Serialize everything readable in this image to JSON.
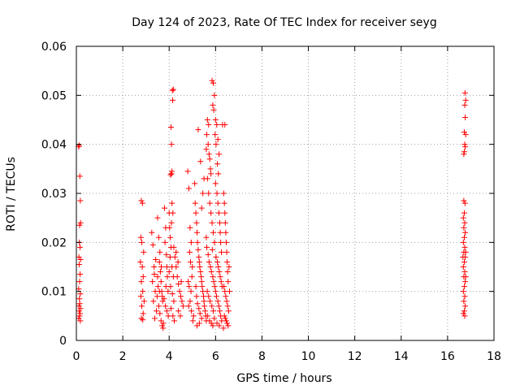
{
  "chart_data": {
    "type": "scatter",
    "title": "Day 124 of 2023, Rate Of TEC Index for receiver seyg",
    "xlabel": "GPS time / hours",
    "ylabel": "ROTI / TECUs",
    "xlim": [
      0,
      18
    ],
    "ylim": [
      0,
      0.06
    ],
    "grid": true,
    "marker": "plus",
    "color": "#ff0000",
    "xticks": [
      0,
      2,
      4,
      6,
      8,
      10,
      12,
      14,
      16,
      18
    ],
    "xtick_labels": [
      "0",
      "2",
      "4",
      "6",
      "8",
      "10",
      "12",
      "14",
      "16",
      "18"
    ],
    "yticks": [
      0,
      0.01,
      0.02,
      0.03,
      0.04,
      0.05,
      0.06
    ],
    "ytick_labels": [
      "0",
      "0.01",
      "0.02",
      "0.03",
      "0.04",
      "0.05",
      "0.06"
    ],
    "series": [
      {
        "name": "ROTI",
        "points": [
          [
            0.1,
            0.0395
          ],
          [
            0.12,
            0.0398
          ],
          [
            0.15,
            0.0335
          ],
          [
            0.17,
            0.0285
          ],
          [
            0.18,
            0.024
          ],
          [
            0.14,
            0.0235
          ],
          [
            0.13,
            0.02
          ],
          [
            0.16,
            0.019
          ],
          [
            0.11,
            0.017
          ],
          [
            0.18,
            0.0165
          ],
          [
            0.12,
            0.0155
          ],
          [
            0.16,
            0.0135
          ],
          [
            0.14,
            0.012
          ],
          [
            0.1,
            0.0105
          ],
          [
            0.17,
            0.0095
          ],
          [
            0.13,
            0.0085
          ],
          [
            0.15,
            0.0075
          ],
          [
            0.11,
            0.007
          ],
          [
            0.18,
            0.0065
          ],
          [
            0.12,
            0.006
          ],
          [
            0.16,
            0.0055
          ],
          [
            0.14,
            0.005
          ],
          [
            0.1,
            0.0045
          ],
          [
            0.17,
            0.004
          ],
          [
            2.8,
            0.0285
          ],
          [
            2.85,
            0.028
          ],
          [
            2.78,
            0.021
          ],
          [
            2.82,
            0.02
          ],
          [
            2.9,
            0.018
          ],
          [
            2.76,
            0.016
          ],
          [
            2.84,
            0.015
          ],
          [
            2.88,
            0.013
          ],
          [
            2.8,
            0.012
          ],
          [
            2.86,
            0.01
          ],
          [
            2.78,
            0.009
          ],
          [
            2.92,
            0.008
          ],
          [
            2.82,
            0.007
          ],
          [
            2.88,
            0.0055
          ],
          [
            2.8,
            0.0045
          ],
          [
            2.86,
            0.0042
          ],
          [
            3.25,
            0.022
          ],
          [
            3.3,
            0.0195
          ],
          [
            3.35,
            0.015
          ],
          [
            3.28,
            0.012
          ],
          [
            3.4,
            0.01
          ],
          [
            3.32,
            0.008
          ],
          [
            3.45,
            0.006
          ],
          [
            3.38,
            0.0045
          ],
          [
            3.5,
            0.025
          ],
          [
            3.55,
            0.021
          ],
          [
            3.6,
            0.018
          ],
          [
            3.58,
            0.016
          ],
          [
            3.62,
            0.014
          ],
          [
            3.65,
            0.012
          ],
          [
            3.68,
            0.01
          ],
          [
            3.7,
            0.009
          ],
          [
            3.72,
            0.008
          ],
          [
            3.55,
            0.007
          ],
          [
            3.6,
            0.0055
          ],
          [
            3.65,
            0.004
          ],
          [
            3.75,
            0.0035
          ],
          [
            3.8,
            0.027
          ],
          [
            3.85,
            0.023
          ],
          [
            3.82,
            0.02
          ],
          [
            3.88,
            0.0175
          ],
          [
            3.9,
            0.015
          ],
          [
            3.92,
            0.013
          ],
          [
            3.86,
            0.011
          ],
          [
            3.95,
            0.01
          ],
          [
            3.78,
            0.0085
          ],
          [
            3.84,
            0.007
          ],
          [
            3.9,
            0.006
          ],
          [
            3.96,
            0.005
          ],
          [
            3.7,
            0.003
          ],
          [
            3.74,
            0.0025
          ],
          [
            3.5,
            0.013
          ],
          [
            3.52,
            0.011
          ],
          [
            3.48,
            0.009
          ],
          [
            3.42,
            0.0165
          ],
          [
            3.36,
            0.0135
          ],
          [
            3.58,
            0.01
          ],
          [
            3.66,
            0.015
          ],
          [
            4.0,
            0.026
          ],
          [
            4.02,
            0.023
          ],
          [
            4.05,
            0.021
          ],
          [
            4.08,
            0.019
          ],
          [
            4.1,
            0.034
          ],
          [
            4.12,
            0.0345
          ],
          [
            4.06,
            0.0338
          ],
          [
            4.1,
            0.04
          ],
          [
            4.08,
            0.0435
          ],
          [
            4.15,
            0.049
          ],
          [
            4.14,
            0.051
          ],
          [
            4.18,
            0.0512
          ],
          [
            4.12,
            0.028
          ],
          [
            4.16,
            0.026
          ],
          [
            4.1,
            0.024
          ],
          [
            4.04,
            0.017
          ],
          [
            4.12,
            0.015
          ],
          [
            4.18,
            0.013
          ],
          [
            4.06,
            0.011
          ],
          [
            4.14,
            0.0095
          ],
          [
            4.2,
            0.008
          ],
          [
            4.08,
            0.0065
          ],
          [
            4.16,
            0.005
          ],
          [
            4.22,
            0.004
          ],
          [
            4.0,
            0.014
          ],
          [
            4.2,
            0.019
          ],
          [
            4.25,
            0.017
          ],
          [
            4.3,
            0.015
          ],
          [
            4.35,
            0.013
          ],
          [
            4.4,
            0.0115
          ],
          [
            4.45,
            0.01
          ],
          [
            4.5,
            0.009
          ],
          [
            4.55,
            0.008
          ],
          [
            4.6,
            0.007
          ],
          [
            4.4,
            0.006
          ],
          [
            4.48,
            0.005
          ],
          [
            4.3,
            0.018
          ],
          [
            4.38,
            0.016
          ],
          [
            4.52,
            0.012
          ],
          [
            4.8,
            0.0345
          ],
          [
            4.85,
            0.031
          ],
          [
            4.9,
            0.023
          ],
          [
            4.95,
            0.02
          ],
          [
            4.88,
            0.018
          ],
          [
            4.92,
            0.016
          ],
          [
            5.0,
            0.015
          ],
          [
            4.98,
            0.013
          ],
          [
            4.82,
            0.012
          ],
          [
            4.86,
            0.011
          ],
          [
            4.94,
            0.01
          ],
          [
            4.9,
            0.008
          ],
          [
            4.84,
            0.007
          ],
          [
            4.96,
            0.006
          ],
          [
            5.05,
            0.005
          ],
          [
            5.02,
            0.004
          ],
          [
            5.1,
            0.032
          ],
          [
            5.12,
            0.028
          ],
          [
            5.15,
            0.026
          ],
          [
            5.18,
            0.024
          ],
          [
            5.2,
            0.022
          ],
          [
            5.22,
            0.02
          ],
          [
            5.25,
            0.0185
          ],
          [
            5.28,
            0.017
          ],
          [
            5.3,
            0.016
          ],
          [
            5.32,
            0.015
          ],
          [
            5.35,
            0.014
          ],
          [
            5.38,
            0.013
          ],
          [
            5.4,
            0.012
          ],
          [
            5.42,
            0.011
          ],
          [
            5.45,
            0.01
          ],
          [
            5.48,
            0.009
          ],
          [
            5.5,
            0.008
          ],
          [
            5.52,
            0.007
          ],
          [
            5.55,
            0.006
          ],
          [
            5.58,
            0.005
          ],
          [
            5.6,
            0.004
          ],
          [
            5.2,
            0.003
          ],
          [
            5.3,
            0.0035
          ],
          [
            5.4,
            0.0045
          ],
          [
            5.25,
            0.043
          ],
          [
            5.35,
            0.0365
          ],
          [
            5.45,
            0.03
          ],
          [
            5.5,
            0.033
          ],
          [
            5.4,
            0.027
          ],
          [
            5.15,
            0.011
          ],
          [
            5.18,
            0.009
          ],
          [
            5.22,
            0.0075
          ],
          [
            5.28,
            0.0065
          ],
          [
            5.33,
            0.0055
          ],
          [
            5.6,
            0.039
          ],
          [
            5.62,
            0.042
          ],
          [
            5.65,
            0.045
          ],
          [
            5.7,
            0.044
          ],
          [
            5.68,
            0.04
          ],
          [
            5.72,
            0.038
          ],
          [
            5.75,
            0.037
          ],
          [
            5.78,
            0.035
          ],
          [
            5.8,
            0.034
          ],
          [
            5.65,
            0.033
          ],
          [
            5.7,
            0.03
          ],
          [
            5.75,
            0.028
          ],
          [
            5.8,
            0.026
          ],
          [
            5.85,
            0.024
          ],
          [
            5.9,
            0.022
          ],
          [
            5.95,
            0.02
          ],
          [
            5.62,
            0.019
          ],
          [
            5.68,
            0.0175
          ],
          [
            5.72,
            0.016
          ],
          [
            5.78,
            0.015
          ],
          [
            5.82,
            0.014
          ],
          [
            5.88,
            0.013
          ],
          [
            5.92,
            0.012
          ],
          [
            5.96,
            0.011
          ],
          [
            5.64,
            0.01
          ],
          [
            5.7,
            0.009
          ],
          [
            5.76,
            0.008
          ],
          [
            5.84,
            0.007
          ],
          [
            5.9,
            0.006
          ],
          [
            5.66,
            0.005
          ],
          [
            5.74,
            0.004
          ],
          [
            5.82,
            0.0035
          ],
          [
            5.88,
            0.003
          ],
          [
            5.94,
            0.0045
          ],
          [
            5.6,
            0.021
          ],
          [
            5.86,
            0.0185
          ],
          [
            5.85,
            0.053
          ],
          [
            5.9,
            0.0525
          ],
          [
            5.95,
            0.05
          ],
          [
            5.88,
            0.048
          ],
          [
            5.92,
            0.047
          ],
          [
            6.0,
            0.045
          ],
          [
            6.05,
            0.044
          ],
          [
            6.1,
            0.041
          ],
          [
            6.15,
            0.038
          ],
          [
            5.98,
            0.042
          ],
          [
            6.02,
            0.04
          ],
          [
            6.08,
            0.036
          ],
          [
            6.12,
            0.034
          ],
          [
            6.0,
            0.032
          ],
          [
            6.06,
            0.03
          ],
          [
            6.1,
            0.028
          ],
          [
            6.14,
            0.026
          ],
          [
            6.18,
            0.024
          ],
          [
            6.2,
            0.022
          ],
          [
            6.22,
            0.02
          ],
          [
            6.25,
            0.018
          ],
          [
            6.02,
            0.017
          ],
          [
            6.08,
            0.016
          ],
          [
            6.12,
            0.015
          ],
          [
            6.16,
            0.014
          ],
          [
            6.2,
            0.013
          ],
          [
            6.24,
            0.012
          ],
          [
            6.28,
            0.011
          ],
          [
            6.0,
            0.01
          ],
          [
            6.04,
            0.009
          ],
          [
            6.1,
            0.008
          ],
          [
            6.14,
            0.007
          ],
          [
            6.18,
            0.006
          ],
          [
            6.22,
            0.005
          ],
          [
            6.26,
            0.004
          ],
          [
            6.06,
            0.0035
          ],
          [
            6.16,
            0.003
          ],
          [
            6.3,
            0.044
          ],
          [
            6.4,
            0.044
          ],
          [
            6.35,
            0.03
          ],
          [
            6.38,
            0.028
          ],
          [
            6.4,
            0.026
          ],
          [
            6.42,
            0.024
          ],
          [
            6.44,
            0.022
          ],
          [
            6.46,
            0.02
          ],
          [
            6.48,
            0.018
          ],
          [
            6.5,
            0.016
          ],
          [
            6.52,
            0.014
          ],
          [
            6.54,
            0.012
          ],
          [
            6.36,
            0.011
          ],
          [
            6.4,
            0.01
          ],
          [
            6.44,
            0.009
          ],
          [
            6.48,
            0.008
          ],
          [
            6.52,
            0.007
          ],
          [
            6.56,
            0.006
          ],
          [
            6.38,
            0.005
          ],
          [
            6.42,
            0.0045
          ],
          [
            6.46,
            0.004
          ],
          [
            6.5,
            0.0035
          ],
          [
            6.54,
            0.003
          ],
          [
            6.34,
            0.0025
          ],
          [
            6.58,
            0.015
          ],
          [
            6.6,
            0.01
          ],
          [
            16.7,
            0.0285
          ],
          [
            16.75,
            0.028
          ],
          [
            16.72,
            0.026
          ],
          [
            16.68,
            0.025
          ],
          [
            16.74,
            0.024
          ],
          [
            16.7,
            0.023
          ],
          [
            16.76,
            0.022
          ],
          [
            16.72,
            0.021
          ],
          [
            16.68,
            0.02
          ],
          [
            16.74,
            0.019
          ],
          [
            16.7,
            0.018
          ],
          [
            16.76,
            0.017
          ],
          [
            16.72,
            0.016
          ],
          [
            16.68,
            0.015
          ],
          [
            16.74,
            0.014
          ],
          [
            16.7,
            0.013
          ],
          [
            16.76,
            0.012
          ],
          [
            16.72,
            0.011
          ],
          [
            16.68,
            0.01
          ],
          [
            16.74,
            0.009
          ],
          [
            16.7,
            0.008
          ],
          [
            16.76,
            0.007
          ],
          [
            16.72,
            0.006
          ],
          [
            16.68,
            0.0055
          ],
          [
            16.74,
            0.005
          ],
          [
            16.78,
            0.018
          ],
          [
            16.66,
            0.017
          ],
          [
            16.78,
            0.013
          ],
          [
            16.75,
            0.0505
          ],
          [
            16.78,
            0.049
          ],
          [
            16.74,
            0.048
          ],
          [
            16.76,
            0.0455
          ],
          [
            16.72,
            0.0425
          ],
          [
            16.78,
            0.042
          ],
          [
            16.74,
            0.04
          ],
          [
            16.76,
            0.0395
          ],
          [
            16.72,
            0.0385
          ],
          [
            16.7,
            0.038
          ]
        ]
      }
    ]
  }
}
